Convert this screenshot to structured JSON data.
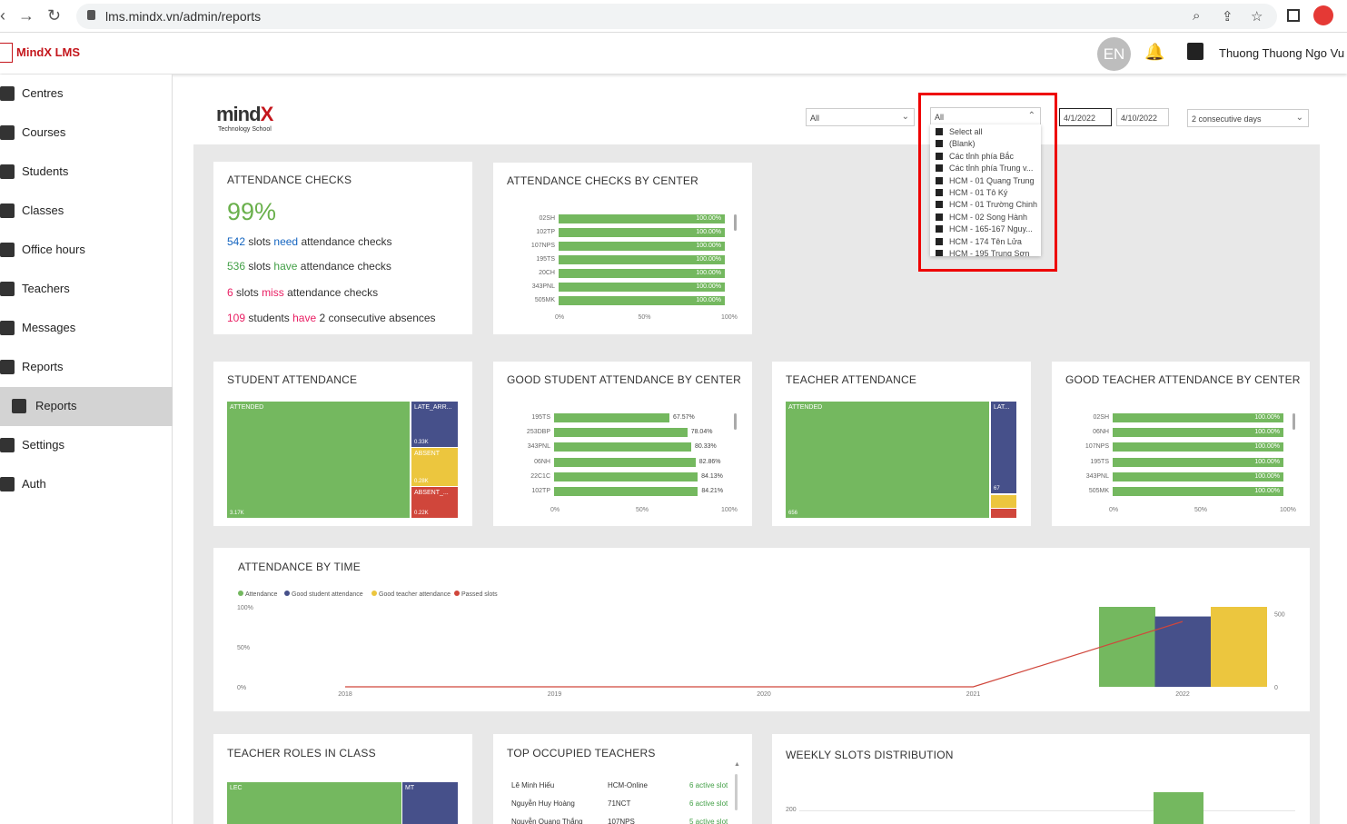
{
  "browser": {
    "url": "lms.mindx.vn/admin/reports"
  },
  "app": {
    "brand": "MindX LMS",
    "avatar_initials": "EN",
    "user_name": "Thuong Thuong Ngo Vu"
  },
  "sidebar": {
    "items": [
      {
        "label": "Centres",
        "icon": "building-icon"
      },
      {
        "label": "Courses",
        "icon": "book-icon"
      },
      {
        "label": "Students",
        "icon": "students-icon"
      },
      {
        "label": "Classes",
        "icon": "grid-icon"
      },
      {
        "label": "Office hours",
        "icon": "clock-icon"
      },
      {
        "label": "Teachers",
        "icon": "teacher-icon"
      },
      {
        "label": "Messages",
        "icon": "message-icon"
      },
      {
        "label": "Reports",
        "icon": "chart-icon"
      },
      {
        "label": "Reports",
        "icon": "chart-icon",
        "active": true
      },
      {
        "label": "Settings",
        "icon": "gear-icon"
      },
      {
        "label": "Auth",
        "icon": "shield-icon"
      }
    ]
  },
  "report": {
    "logo_main": "mind",
    "logo_accent": "X",
    "logo_sub": "Technology School",
    "filters": {
      "first": "All",
      "center": "All",
      "date_from": "4/1/2022",
      "date_to": "4/10/2022",
      "consecutive": "2 consecutive days"
    },
    "center_dropdown_items": [
      "Select all",
      "(Blank)",
      "Các tỉnh phía Bắc",
      "Các tỉnh phía Trung v...",
      "HCM - 01 Quang Trung",
      "HCM - 01 Tô Ký",
      "HCM - 01 Trường Chinh",
      "HCM - 02 Song Hành",
      "HCM - 165-167 Nguy...",
      "HCM - 174 Tên Lửa",
      "HCM - 195 Trung Sơn"
    ],
    "attendance_checks": {
      "title": "ATTENDANCE CHECKS",
      "percent": "99%",
      "need_count": "542",
      "need_pre": "slots",
      "need_word": "need",
      "need_post": "attendance checks",
      "have_count": "536",
      "have_pre": "slots",
      "have_word": "have",
      "have_post": "attendance checks",
      "miss_count": "6",
      "miss_pre": "slots",
      "miss_word": "miss",
      "miss_post": "attendance checks",
      "abs_count": "109",
      "abs_pre": "students",
      "abs_word": "have",
      "abs_post": "2 consecutive absences"
    },
    "cards": {
      "by_center": "ATTENDANCE CHECKS BY CENTER",
      "student_att": "STUDENT ATTENDANCE",
      "good_student": "GOOD STUDENT ATTENDANCE BY CENTER",
      "teacher_att": "TEACHER ATTENDANCE",
      "good_teacher": "GOOD TEACHER ATTENDANCE BY CENTER",
      "by_time": "ATTENDANCE BY TIME",
      "teacher_roles": "TEACHER ROLES IN CLASS",
      "top_teachers": "TOP OCCUPIED TEACHERS",
      "weekly": "WEEKLY SLOTS DISTRIBUTION"
    },
    "student_treemap": {
      "attended": "ATTENDED",
      "attended_val": "3.17K",
      "late": "LATE_ARR...",
      "late_val": "0.33K",
      "absent": "ABSENT",
      "absent_val": "0.28K",
      "absent_x": "ABSENT_...",
      "absent_x_val": "0.22K"
    },
    "teacher_treemap": {
      "attended": "ATTENDED",
      "attended_val": "656",
      "late": "LAT...",
      "late_val": "67"
    },
    "roles_treemap": {
      "lec": "LEC",
      "mt": "MT"
    },
    "top_teachers": [
      {
        "name": "Lê Minh Hiếu",
        "center": "HCM-Online",
        "slots": "6 active slot"
      },
      {
        "name": "Nguyễn Huy Hoàng",
        "center": "71NCT",
        "slots": "6 active slot"
      },
      {
        "name": "Nguyễn Quang Thắng",
        "center": "107NPS",
        "slots": "5 active slot"
      }
    ],
    "weekly_tick": "200"
  },
  "chart_data": [
    {
      "type": "bar",
      "title": "ATTENDANCE CHECKS BY CENTER",
      "categories": [
        "02SH",
        "102TP",
        "107NPS",
        "195TS",
        "20CH",
        "343PNL",
        "505MK"
      ],
      "values": [
        100,
        100,
        100,
        100,
        100,
        100,
        100
      ],
      "value_labels": [
        "100.00%",
        "100.00%",
        "100.00%",
        "100.00%",
        "100.00%",
        "100.00%",
        "100.00%"
      ],
      "xticks": [
        "0%",
        "50%",
        "100%"
      ],
      "xlim": [
        0,
        100
      ]
    },
    {
      "type": "bar",
      "title": "GOOD STUDENT ATTENDANCE BY CENTER",
      "categories": [
        "195TS",
        "253DBP",
        "343PNL",
        "06NH",
        "22C1C",
        "102TP"
      ],
      "values": [
        67.57,
        78.04,
        80.33,
        82.86,
        84.13,
        84.21
      ],
      "value_labels": [
        "67.57%",
        "78.04%",
        "80.33%",
        "82.86%",
        "84.13%",
        "84.21%"
      ],
      "xticks": [
        "0%",
        "50%",
        "100%"
      ],
      "xlim": [
        0,
        100
      ]
    },
    {
      "type": "bar",
      "title": "GOOD TEACHER ATTENDANCE BY CENTER",
      "categories": [
        "02SH",
        "06NH",
        "107NPS",
        "195TS",
        "343PNL",
        "505MK"
      ],
      "values": [
        100,
        100,
        100,
        100,
        100,
        100
      ],
      "value_labels": [
        "100.00%",
        "100.00%",
        "100.00%",
        "100.00%",
        "100.00%",
        "100.00%"
      ],
      "xticks": [
        "0%",
        "50%",
        "100%"
      ],
      "xlim": [
        0,
        100
      ]
    },
    {
      "type": "bar",
      "title": "ATTENDANCE BY TIME",
      "categories": [
        "2018",
        "2019",
        "2020",
        "2021",
        "2022"
      ],
      "series": [
        {
          "name": "Attendance",
          "color": "#74b85f",
          "values": [
            0,
            0,
            0,
            0,
            100
          ]
        },
        {
          "name": "Good student attendance",
          "color": "#46508a",
          "values": [
            0,
            0,
            0,
            0,
            88
          ]
        },
        {
          "name": "Good teacher attendance",
          "color": "#ecc63e",
          "values": [
            0,
            0,
            0,
            0,
            100
          ]
        },
        {
          "name": "Passed slots",
          "color": "#d0463b",
          "type": "line",
          "values": [
            0,
            0,
            0,
            0,
            490
          ]
        }
      ],
      "yticks_left": [
        "100%",
        "50%",
        "0%"
      ],
      "yticks_right": [
        "500",
        "0"
      ],
      "ylim_right": [
        0,
        600
      ],
      "legend": "top-left"
    }
  ]
}
